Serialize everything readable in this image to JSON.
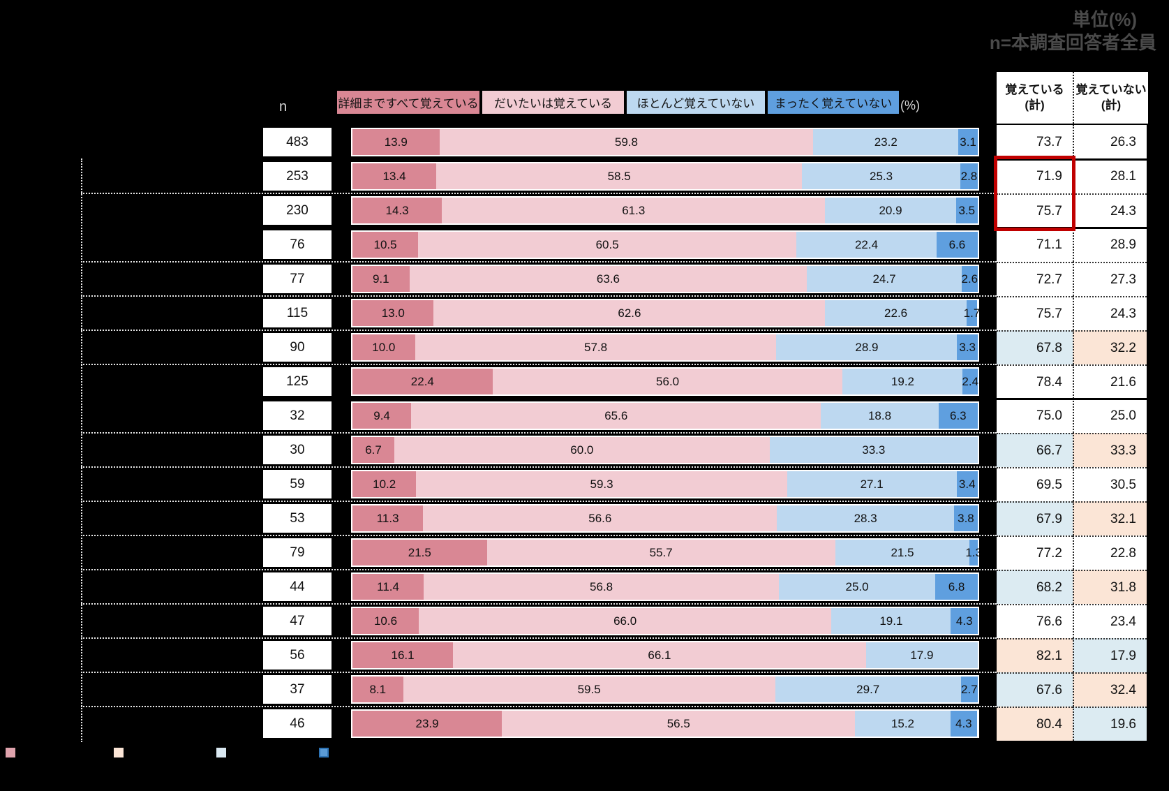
{
  "title": {
    "line1": "単位(%)",
    "line2": "n=本調査回答者全員"
  },
  "header": {
    "n_label": "n",
    "percent_label": "(%)",
    "legend": [
      {
        "label": "詳細まですべて覚えている",
        "color": "#d98794"
      },
      {
        "label": "だいたいは覚えている",
        "color": "#f2ccd3"
      },
      {
        "label": "ほとんど覚えていない",
        "color": "#bdd8f0"
      },
      {
        "label": "まったく覚えていない",
        "color": "#5f9fdf"
      }
    ],
    "totals": [
      {
        "line1": "覚えている",
        "line2": "(計)"
      },
      {
        "line1": "覚えていない",
        "line2": "(計)"
      }
    ]
  },
  "rows": [
    {
      "n": "483",
      "values": [
        13.9,
        59.8,
        23.2,
        3.1
      ],
      "totals": [
        "73.7",
        "26.3"
      ],
      "highlight": "none",
      "sep_after": "solid"
    },
    {
      "n": "253",
      "values": [
        13.4,
        58.5,
        25.3,
        2.8
      ],
      "totals": [
        "71.9",
        "28.1"
      ],
      "highlight": "none",
      "sep_after": "dotted"
    },
    {
      "n": "230",
      "values": [
        14.3,
        61.3,
        20.9,
        3.5
      ],
      "totals": [
        "75.7",
        "24.3"
      ],
      "highlight": "none",
      "sep_after": "solid"
    },
    {
      "n": "76",
      "values": [
        10.5,
        60.5,
        22.4,
        6.6
      ],
      "totals": [
        "71.1",
        "28.9"
      ],
      "highlight": "none",
      "sep_after": "dotted"
    },
    {
      "n": "77",
      "values": [
        9.1,
        63.6,
        24.7,
        2.6
      ],
      "totals": [
        "72.7",
        "27.3"
      ],
      "highlight": "none",
      "sep_after": "dotted"
    },
    {
      "n": "115",
      "values": [
        13.0,
        62.6,
        22.6,
        1.7
      ],
      "totals": [
        "75.7",
        "24.3"
      ],
      "highlight": "none",
      "sep_after": "dotted"
    },
    {
      "n": "90",
      "values": [
        10.0,
        57.8,
        28.9,
        3.3
      ],
      "totals": [
        "67.8",
        "32.2"
      ],
      "highlight": "low",
      "sep_after": "dotted"
    },
    {
      "n": "125",
      "values": [
        22.4,
        56.0,
        19.2,
        2.4
      ],
      "totals": [
        "78.4",
        "21.6"
      ],
      "highlight": "none",
      "sep_after": "solid"
    },
    {
      "n": "32",
      "values": [
        9.4,
        65.6,
        18.8,
        6.3
      ],
      "totals": [
        "75.0",
        "25.0"
      ],
      "highlight": "none",
      "sep_after": "dotted"
    },
    {
      "n": "30",
      "values": [
        6.7,
        60.0,
        33.3,
        0.0
      ],
      "totals": [
        "66.7",
        "33.3"
      ],
      "highlight": "low",
      "sep_after": "dotted"
    },
    {
      "n": "59",
      "values": [
        10.2,
        59.3,
        27.1,
        3.4
      ],
      "totals": [
        "69.5",
        "30.5"
      ],
      "highlight": "none",
      "sep_after": "dotted"
    },
    {
      "n": "53",
      "values": [
        11.3,
        56.6,
        28.3,
        3.8
      ],
      "totals": [
        "67.9",
        "32.1"
      ],
      "highlight": "low",
      "sep_after": "dotted"
    },
    {
      "n": "79",
      "values": [
        21.5,
        55.7,
        21.5,
        1.3
      ],
      "totals": [
        "77.2",
        "22.8"
      ],
      "highlight": "none",
      "sep_after": "dotted"
    },
    {
      "n": "44",
      "values": [
        11.4,
        56.8,
        25.0,
        6.8
      ],
      "totals": [
        "68.2",
        "31.8"
      ],
      "highlight": "low",
      "sep_after": "dotted"
    },
    {
      "n": "47",
      "values": [
        10.6,
        66.0,
        19.1,
        4.3
      ],
      "totals": [
        "76.6",
        "23.4"
      ],
      "highlight": "none",
      "sep_after": "dotted"
    },
    {
      "n": "56",
      "values": [
        16.1,
        66.1,
        17.9,
        0.0
      ],
      "totals": [
        "82.1",
        "17.9"
      ],
      "highlight": "high",
      "sep_after": "dotted"
    },
    {
      "n": "37",
      "values": [
        8.1,
        59.5,
        29.7,
        2.7
      ],
      "totals": [
        "67.6",
        "32.4"
      ],
      "highlight": "low",
      "sep_after": "dotted"
    },
    {
      "n": "46",
      "values": [
        23.9,
        56.5,
        15.2,
        4.3
      ],
      "totals": [
        "80.4",
        "19.6"
      ],
      "highlight": "high",
      "sep_after": "none"
    }
  ],
  "annotations": {
    "red_box": {
      "rows": [
        2,
        3
      ],
      "column": "覚えている(計)",
      "color": "#c00000"
    }
  },
  "status_colors": {
    "low_remember_cell": "#dcebf2",
    "low_forget_cell": "#fbe5d6",
    "high_remember_cell": "#fbe5d6",
    "high_forget_cell": "#dcebf2"
  },
  "bottom_legend": {
    "swatches": [
      {
        "name": "pink-swatch",
        "color": "#dfa3ad"
      },
      {
        "name": "peach-swatch",
        "color": "#fbe5d6"
      },
      {
        "name": "pale-blue-swatch",
        "color": "#d9e8f1"
      },
      {
        "name": "blue-swatch",
        "color": "#5b9bd5"
      }
    ]
  },
  "chart_data": {
    "type": "bar",
    "orientation": "horizontal-stacked",
    "unit": "%",
    "categories_visible": false,
    "categories": [
      "n=483",
      "n=253",
      "n=230",
      "n=76",
      "n=77",
      "n=115",
      "n=90",
      "n=125",
      "n=32",
      "n=30",
      "n=59",
      "n=53",
      "n=79",
      "n=44",
      "n=47",
      "n=56",
      "n=37",
      "n=46"
    ],
    "n": [
      483,
      253,
      230,
      76,
      77,
      115,
      90,
      125,
      32,
      30,
      59,
      53,
      79,
      44,
      47,
      56,
      37,
      46
    ],
    "series": [
      {
        "name": "詳細まですべて覚えている",
        "color": "#d98794",
        "values": [
          13.9,
          13.4,
          14.3,
          10.5,
          9.1,
          13.0,
          10.0,
          22.4,
          9.4,
          6.7,
          10.2,
          11.3,
          21.5,
          11.4,
          10.6,
          16.1,
          8.1,
          23.9
        ]
      },
      {
        "name": "だいたいは覚えている",
        "color": "#f2ccd3",
        "values": [
          59.8,
          58.5,
          61.3,
          60.5,
          63.6,
          62.6,
          57.8,
          56.0,
          65.6,
          60.0,
          59.3,
          56.6,
          55.7,
          56.8,
          66.0,
          66.1,
          59.5,
          56.5
        ]
      },
      {
        "name": "ほとんど覚えていない",
        "color": "#bdd8f0",
        "values": [
          23.2,
          25.3,
          20.9,
          22.4,
          24.7,
          22.6,
          28.9,
          19.2,
          18.8,
          33.3,
          27.1,
          28.3,
          21.5,
          25.0,
          19.1,
          17.9,
          29.7,
          15.2
        ]
      },
      {
        "name": "まったく覚えていない",
        "color": "#5f9fdf",
        "values": [
          3.1,
          2.8,
          3.5,
          6.6,
          2.6,
          1.7,
          3.3,
          2.4,
          6.3,
          0.0,
          3.4,
          3.8,
          1.3,
          6.8,
          4.3,
          0.0,
          2.7,
          4.3
        ]
      }
    ],
    "totals": [
      {
        "name": "覚えている(計)",
        "values": [
          73.7,
          71.9,
          75.7,
          71.1,
          72.7,
          75.7,
          67.8,
          78.4,
          75.0,
          66.7,
          69.5,
          67.9,
          77.2,
          68.2,
          76.6,
          82.1,
          67.6,
          80.4
        ]
      },
      {
        "name": "覚えていない(計)",
        "values": [
          26.3,
          28.1,
          24.3,
          28.9,
          27.3,
          24.3,
          32.2,
          21.6,
          25.0,
          33.3,
          30.5,
          32.1,
          22.8,
          31.8,
          23.4,
          17.9,
          32.4,
          19.6
        ]
      }
    ],
    "xlim": [
      0,
      100
    ],
    "title": "単位(%) n=本調査回答者全員",
    "annotation": "覚えている(計) of rows n=253 and n=230 outlined in red"
  }
}
